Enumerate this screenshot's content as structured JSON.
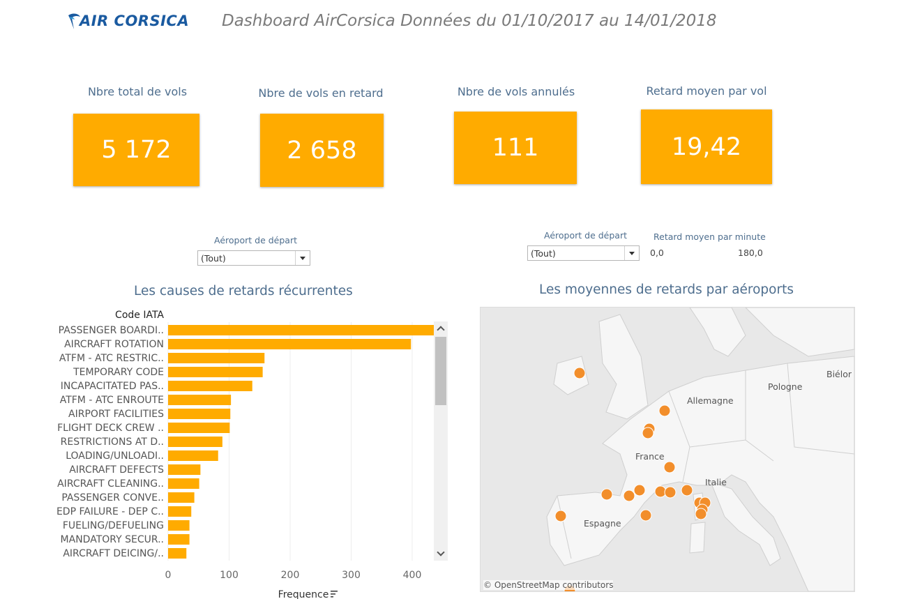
{
  "header": {
    "logo_text": "AIR CORSICA",
    "title": "Dashboard AirCorsica Données du 01/10/2017 au 14/01/2018"
  },
  "kpis": [
    {
      "label": "Nbre total de vols",
      "value": "5 172"
    },
    {
      "label": "Nbre de vols en retard",
      "value": "2 658"
    },
    {
      "label": "Nbre de vols annulés",
      "value": "111"
    },
    {
      "label": "Retard moyen par vol",
      "value": "19,42"
    }
  ],
  "filters": {
    "left": {
      "label": "Aéroport de départ",
      "value": "(Tout)"
    },
    "right": {
      "label": "Aéroport de départ",
      "value": "(Tout)"
    },
    "legend": {
      "label": "Retard moyen par minute",
      "min": "0,0",
      "max": "180,0"
    }
  },
  "sections": {
    "causes_title": "Les causes de retards récurrentes",
    "map_title": "Les moyennes de retards par aéroports"
  },
  "chart_data": {
    "type": "bar",
    "orientation": "horizontal",
    "column_header": "Code IATA",
    "xlabel": "Frequence",
    "xlim": [
      0,
      480
    ],
    "xticks": [
      0,
      100,
      200,
      300,
      400
    ],
    "categories": [
      "PASSENGER BOARDI..",
      "AIRCRAFT ROTATION",
      "ATFM - ATC RESTRIC..",
      "TEMPORARY CODE",
      "INCAPACITATED PAS..",
      "ATFM - ATC ENROUTE",
      "AIRPORT FACILITIES",
      "FLIGHT DECK CREW ..",
      "RESTRICTIONS AT D..",
      "LOADING/UNLOADI..",
      "AIRCRAFT DEFECTS",
      "AIRCRAFT CLEANING..",
      "PASSENGER CONVE..",
      "EDP FAILURE - DEP C..",
      "FUELING/DEFUELING",
      "MANDATORY SECUR..",
      "AIRCRAFT DEICING/.."
    ],
    "values": [
      458,
      398,
      158,
      155,
      138,
      103,
      102,
      101,
      89,
      82,
      53,
      51,
      43,
      38,
      35,
      35,
      30
    ],
    "bar_color": "#ffab00",
    "grid": true
  },
  "map": {
    "labels": [
      "Pologne",
      "Allemagne",
      "France",
      "Italie",
      "Espagne",
      "Biélor"
    ],
    "attribution": "© OpenStreetMap contributors",
    "point_color": "#f28e2b",
    "airports_count": 22
  }
}
